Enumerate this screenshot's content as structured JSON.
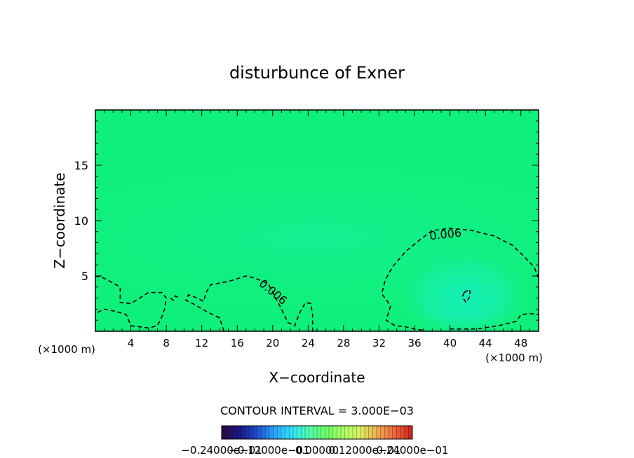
{
  "chart_data": {
    "type": "contour",
    "title": "disturbunce of Exner",
    "xlabel": "X−coordinate",
    "ylabel": "Z−coordinate",
    "x_unit_left": "(×1000 m)",
    "x_unit_right": "(×1000 m)",
    "xlim": [
      0,
      50
    ],
    "ylim": [
      0,
      20
    ],
    "x_ticks": [
      4,
      8,
      12,
      16,
      20,
      24,
      28,
      32,
      36,
      40,
      44,
      48
    ],
    "y_ticks": [
      5,
      10,
      15
    ],
    "contour_interval_text": "CONTOUR INTERVAL = 3.000E−03",
    "contour_labels": [
      {
        "text": "0.006",
        "x": 39.5,
        "z": 8.7,
        "angle": -6
      },
      {
        "text": "0.006",
        "x": 20.0,
        "z": 3.5,
        "angle": 40
      }
    ],
    "contours": [
      {
        "level": 0.006,
        "dashed": true,
        "points": [
          [
            50,
            4.8
          ],
          [
            49.5,
            5.8
          ],
          [
            48.3,
            6.8
          ],
          [
            47,
            7.8
          ],
          [
            45,
            8.6
          ],
          [
            42.5,
            9.1
          ],
          [
            40,
            9.3
          ],
          [
            38,
            9.1
          ],
          [
            36.5,
            8.2
          ],
          [
            35,
            7.2
          ],
          [
            33.5,
            5.8
          ],
          [
            32.7,
            4.6
          ],
          [
            32.3,
            3.4
          ],
          [
            33.3,
            2.3
          ],
          [
            32.8,
            1.0
          ],
          [
            33.8,
            0.5
          ],
          [
            35,
            0.4
          ],
          [
            36,
            0.2
          ],
          [
            37,
            0.1
          ]
        ]
      },
      {
        "level": 0.006,
        "dashed": true,
        "points": [
          [
            40,
            0.2
          ],
          [
            43,
            0.2
          ],
          [
            45.5,
            0.5
          ],
          [
            47.5,
            0.9
          ],
          [
            48,
            1.5
          ],
          [
            49,
            1.6
          ],
          [
            50,
            1.5
          ]
        ]
      },
      {
        "level": 0.006,
        "dashed": true,
        "points": [
          [
            0,
            5
          ],
          [
            1,
            4.8
          ],
          [
            2.8,
            4.0
          ],
          [
            2.8,
            2.6
          ],
          [
            4,
            2.5
          ],
          [
            6,
            3.5
          ],
          [
            7.5,
            3.5
          ],
          [
            8,
            3.0
          ],
          [
            7.8,
            2.0
          ],
          [
            7.5,
            1.3
          ],
          [
            7,
            0.5
          ],
          [
            6,
            0.3
          ],
          [
            4,
            0.5
          ],
          [
            3.5,
            1.5
          ],
          [
            2.3,
            1.8
          ],
          [
            1,
            2.0
          ],
          [
            0,
            1.6
          ]
        ]
      },
      {
        "level": 0.006,
        "dashed": true,
        "points": [
          [
            8.5,
            3.0
          ],
          [
            8.8,
            2.8
          ],
          [
            9,
            3.2
          ],
          [
            9.5,
            3.0
          ]
        ]
      },
      {
        "level": 0.006,
        "dashed": true,
        "points": [
          [
            14.5,
            0
          ],
          [
            14,
            1.2
          ],
          [
            12.5,
            1.8
          ],
          [
            11,
            2.5
          ],
          [
            10.2,
            2.8
          ],
          [
            10.5,
            3.3
          ],
          [
            11.5,
            3.0
          ],
          [
            12.2,
            2.7
          ],
          [
            12.5,
            3.5
          ],
          [
            13,
            4.2
          ],
          [
            15,
            4.5
          ],
          [
            17,
            5.0
          ],
          [
            18,
            4.8
          ],
          [
            19.5,
            4.3
          ],
          [
            21,
            2.0
          ],
          [
            21.7,
            0.8
          ],
          [
            22.5,
            0.5
          ],
          [
            23,
            1.6
          ],
          [
            23.7,
            2.6
          ],
          [
            24.3,
            2.5
          ],
          [
            24.5,
            1.5
          ],
          [
            24.5,
            0
          ]
        ]
      },
      {
        "level": 0.003,
        "dashed": true,
        "points": [
          [
            41.6,
            3.5
          ],
          [
            42.2,
            3.8
          ],
          [
            42.3,
            3.2
          ],
          [
            41.8,
            2.6
          ],
          [
            41.4,
            3.1
          ],
          [
            41.6,
            3.5
          ]
        ]
      }
    ],
    "colorbar": {
      "labels": [
        "−0.24000e−01",
        "−0.12000e−01",
        "0.00000",
        "0.12000e−01",
        "0.24000e−01"
      ],
      "colors": [
        "#2a0a4a",
        "#1a1a8a",
        "#1f4fd0",
        "#2aa6ff",
        "#34e0ff",
        "#4dffb0",
        "#6aff6a",
        "#a8ff66",
        "#d8f060",
        "#f0b050",
        "#f06a40",
        "#d02a20"
      ]
    },
    "field": {
      "background": "#0ff07a",
      "features": [
        {
          "kind": "minimum",
          "x": 41.5,
          "z": 3.5,
          "radius_x": 8,
          "radius_z": 4.5,
          "color": "#17f0c2"
        },
        {
          "kind": "band",
          "x": 25,
          "z": 8.5,
          "radius_x": 40,
          "radius_z": 8,
          "color": "#10f08a"
        }
      ]
    }
  }
}
